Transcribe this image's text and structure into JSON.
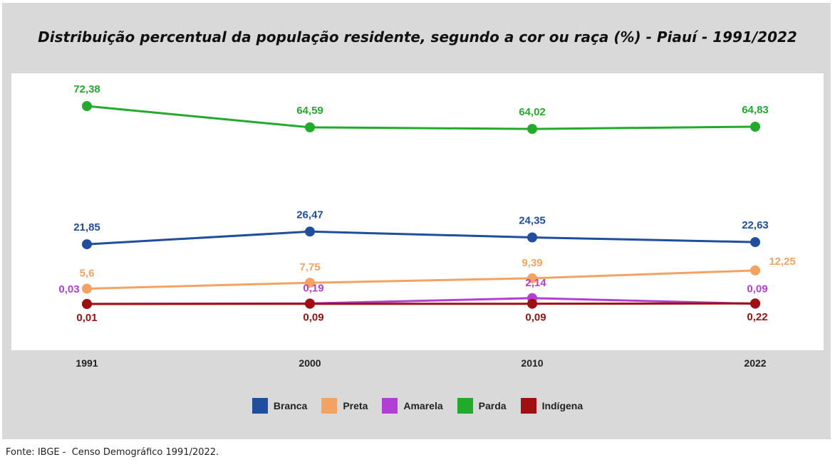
{
  "chart_data": {
    "type": "line",
    "title": "Distribuição percentual da população residente, segundo a cor ou raça (%) - Piauí - 1991/2022",
    "categories": [
      "1991",
      "2000",
      "2010",
      "2022"
    ],
    "series": [
      {
        "name": "Branca",
        "color": "#1f4e9c",
        "values": [
          21.85,
          26.47,
          24.35,
          22.63
        ],
        "labels": [
          "21,85",
          "26,47",
          "24,35",
          "22,63"
        ]
      },
      {
        "name": "Preta",
        "color": "#f4a261",
        "values": [
          5.6,
          7.75,
          9.39,
          12.25
        ],
        "labels": [
          "5,6",
          "7,75",
          "9,39",
          "12,25"
        ]
      },
      {
        "name": "Amarela",
        "color": "#b23fd4",
        "values": [
          0.03,
          0.19,
          2.14,
          0.09
        ],
        "labels": [
          "0,03",
          "0,19",
          "2,14",
          "0,09"
        ]
      },
      {
        "name": "Parda",
        "color": "#22aa2a",
        "values": [
          72.38,
          64.59,
          64.02,
          64.83
        ],
        "labels": [
          "72,38",
          "64,59",
          "64,02",
          "64,83"
        ]
      },
      {
        "name": "Indígena",
        "color": "#a01010",
        "values": [
          0.01,
          0.09,
          0.09,
          0.22
        ],
        "labels": [
          "0,01",
          "0,09",
          "0,09",
          "0,22"
        ]
      }
    ],
    "legend_position": "bottom",
    "grid": false
  },
  "source": "Fonte: IBGE -  Censo Demográfico 1991/2022."
}
